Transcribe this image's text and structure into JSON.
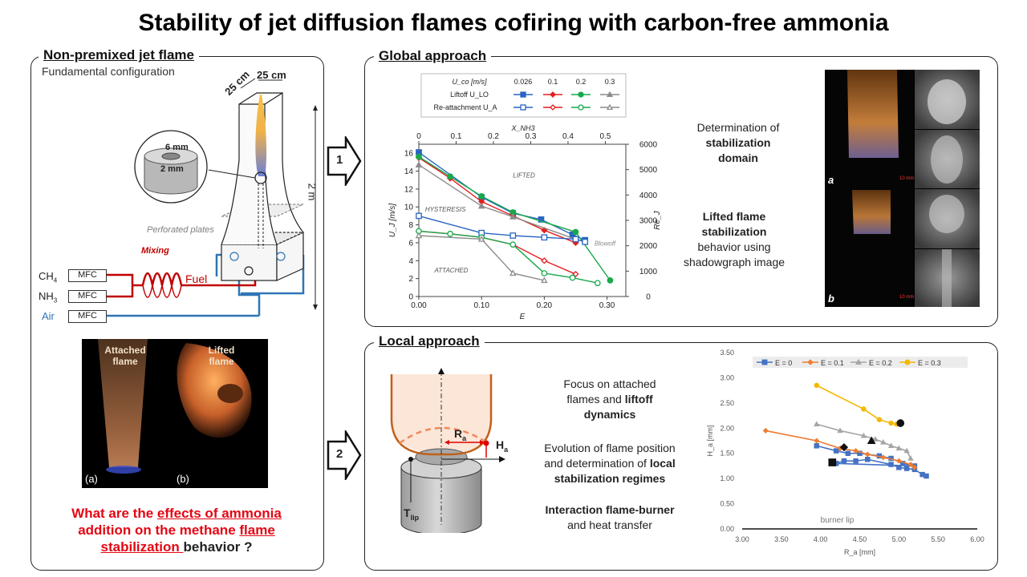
{
  "title": "Stability of jet diffusion flames cofiring with carbon-free ammonia",
  "left_panel": {
    "title": "Non-premixed jet flame",
    "subtitle": "Fundamental configuration",
    "dims": {
      "w1": "25 cm",
      "w2": "25 cm",
      "height": "2 m",
      "outer": "6 mm",
      "inner": "2 mm"
    },
    "labels": {
      "perforated": "Perforated plates",
      "mixing": "Mixing",
      "fuel": "Fuel",
      "ch4": "CH",
      "ch4_sub": "4",
      "nh3": "NH",
      "nh3_sub": "3",
      "air": "Air",
      "mfc": "MFC"
    },
    "photo": {
      "attached": "Attached flame",
      "lifted": "Lifted flame",
      "a": "(a)",
      "b": "(b)"
    },
    "question": {
      "p1": "What are the ",
      "u1": "effects of ammonia",
      "p2": "addition on the methane ",
      "u2": "flame",
      "u3": "stabilization ",
      "p3": "behavior ?"
    }
  },
  "arrows": {
    "a1": "1",
    "a2": "2"
  },
  "global": {
    "title": "Global approach",
    "text1a": "Determination of",
    "text1b": "stabilization",
    "text1c": "domain",
    "text2a": "Lifted flame",
    "text2b": "stabilization",
    "text2c": "behavior using",
    "text2d": "shadowgraph image",
    "photo_labels": {
      "a": "a",
      "b": "b",
      "scale": "10 mm"
    }
  },
  "local": {
    "title": "Local approach",
    "ra": "R",
    "ra_sub": "a",
    "ha": "H",
    "ha_sub": "a",
    "tlip": "T",
    "tlip_sub": "lip",
    "t1a": "Focus on attached",
    "t1b": "flames and ",
    "t1c": "liftoff",
    "t1d": "dynamics",
    "t2a": "Evolution of flame position",
    "t2b": "and determination of ",
    "t2c": "local",
    "t2d": "stabilization regimes",
    "t3a": "Interaction flame-burner",
    "t3b": "and heat transfer"
  },
  "colors": {
    "blue": "#2a64c4",
    "red": "#e31e1e",
    "green": "#18a84a",
    "grey": "#8c8c8c",
    "orange": "#ed7d31",
    "gold": "#f5b800"
  },
  "chart_data": [
    {
      "type": "line",
      "xlabel": "E",
      "ylabel": "U_J [m/s]",
      "y2label": "Re_J",
      "x2label": "X_NH3",
      "xlim": [
        0,
        0.33
      ],
      "ylim": [
        0,
        17
      ],
      "x_ticks": [
        "0.00",
        "0.10",
        "0.20",
        "0.30"
      ],
      "y_ticks": [
        "0",
        "2",
        "4",
        "6",
        "8",
        "10",
        "12",
        "14",
        "16"
      ],
      "y2_ticks": [
        "0",
        "1000",
        "2000",
        "3000",
        "4000",
        "5000",
        "6000"
      ],
      "x2_ticks": [
        "0",
        "0.1",
        "0.2",
        "0.3",
        "0.4",
        "0.5"
      ],
      "region_labels": {
        "lifted": "LIFTED",
        "hysteresis": "HYSTERESIS",
        "attached": "ATTACHED",
        "blowoff": "Blowoff"
      },
      "legend": {
        "header": "U_co [m/s]",
        "cols": [
          "0.026",
          "0.1",
          "0.2",
          "0.3"
        ],
        "row1": "Liftoff U_LO",
        "row2": "Re-attachment U_A"
      },
      "series": [
        {
          "name": "Liftoff U_LO 0.026",
          "color": "#2a64c4",
          "marker": "square",
          "filled": true,
          "points": [
            [
              0,
              16.1
            ],
            [
              0.1,
              11.1
            ],
            [
              0.15,
              9.3
            ],
            [
              0.195,
              8.6
            ],
            [
              0.245,
              6.9
            ],
            [
              0.265,
              6.3
            ]
          ]
        },
        {
          "name": "Liftoff U_LO 0.1",
          "color": "#e31e1e",
          "marker": "diamond",
          "filled": true,
          "points": [
            [
              0,
              15.5
            ],
            [
              0.05,
              13.2
            ],
            [
              0.1,
              10.6
            ],
            [
              0.15,
              9.0
            ],
            [
              0.2,
              7.4
            ],
            [
              0.25,
              6.0
            ]
          ]
        },
        {
          "name": "Liftoff U_LO 0.2",
          "color": "#18a84a",
          "marker": "circle",
          "filled": true,
          "points": [
            [
              0,
              15.6
            ],
            [
              0.05,
              13.4
            ],
            [
              0.1,
              11.2
            ],
            [
              0.15,
              9.4
            ],
            [
              0.25,
              7.2
            ],
            [
              0.305,
              1.8
            ]
          ]
        },
        {
          "name": "Liftoff U_LO 0.3",
          "color": "#8c8c8c",
          "marker": "triangle",
          "filled": true,
          "points": [
            [
              0,
              14.7
            ],
            [
              0.1,
              10.1
            ],
            [
              0.15,
              8.9
            ],
            [
              0.25,
              6.4
            ]
          ]
        },
        {
          "name": "Re-attachment U_A 0.026",
          "color": "#2a64c4",
          "marker": "square",
          "filled": false,
          "points": [
            [
              0,
              9.0
            ],
            [
              0.1,
              7.1
            ],
            [
              0.15,
              6.8
            ],
            [
              0.2,
              6.6
            ],
            [
              0.25,
              6.4
            ],
            [
              0.265,
              6.1
            ]
          ]
        },
        {
          "name": "Re-attachment U_A 0.1",
          "color": "#e31e1e",
          "marker": "diamond",
          "filled": false,
          "points": [
            [
              0,
              7.3
            ],
            [
              0.05,
              7.0
            ],
            [
              0.1,
              6.6
            ],
            [
              0.15,
              5.8
            ],
            [
              0.2,
              4.0
            ],
            [
              0.25,
              2.5
            ]
          ]
        },
        {
          "name": "Re-attachment U_A 0.2",
          "color": "#18a84a",
          "marker": "circle",
          "filled": false,
          "points": [
            [
              0,
              7.3
            ],
            [
              0.05,
              7.0
            ],
            [
              0.1,
              6.6
            ],
            [
              0.15,
              5.8
            ],
            [
              0.2,
              2.6
            ],
            [
              0.245,
              2.1
            ],
            [
              0.285,
              1.5
            ]
          ]
        },
        {
          "name": "Re-attachment U_A 0.3",
          "color": "#8c8c8c",
          "marker": "triangle",
          "filled": false,
          "points": [
            [
              0,
              6.8
            ],
            [
              0.1,
              6.4
            ],
            [
              0.15,
              2.6
            ],
            [
              0.2,
              1.8
            ]
          ]
        }
      ]
    },
    {
      "type": "scatter",
      "xlabel": "R_a [mm]",
      "ylabel": "H_a [mm]",
      "xlim": [
        3.0,
        6.0
      ],
      "ylim": [
        0,
        3.5
      ],
      "x_ticks": [
        "3.00",
        "3.50",
        "4.00",
        "4.50",
        "5.00",
        "5.50",
        "6.00"
      ],
      "y_ticks": [
        "0.00",
        "0.50",
        "1.00",
        "1.50",
        "2.00",
        "2.50",
        "3.00",
        "3.50"
      ],
      "annotation": "burner lip",
      "legend": [
        "E = 0",
        "E = 0.1",
        "E = 0.2",
        "E = 0.3"
      ],
      "series": [
        {
          "name": "E = 0",
          "color": "#4472c4",
          "marker": "square",
          "points": [
            [
              3.95,
              1.65
            ],
            [
              4.2,
              1.55
            ],
            [
              4.35,
              1.5
            ],
            [
              4.5,
              1.5
            ],
            [
              4.75,
              1.45
            ],
            [
              4.9,
              1.4
            ],
            [
              5.05,
              1.3
            ],
            [
              5.2,
              1.25
            ],
            [
              4.2,
              1.3
            ],
            [
              4.3,
              1.35
            ],
            [
              4.45,
              1.35
            ],
            [
              4.6,
              1.38
            ],
            [
              4.9,
              1.28
            ],
            [
              5.0,
              1.22
            ],
            [
              5.1,
              1.2
            ],
            [
              5.2,
              1.18
            ],
            [
              5.3,
              1.08
            ],
            [
              5.35,
              1.05
            ]
          ],
          "marker_end": [
            4.15,
            1.32
          ]
        },
        {
          "name": "E = 0.1",
          "color": "#ed7d31",
          "marker": "diamond",
          "points": [
            [
              3.3,
              1.95
            ],
            [
              3.95,
              1.75
            ],
            [
              4.25,
              1.6
            ],
            [
              4.45,
              1.55
            ],
            [
              4.6,
              1.48
            ],
            [
              4.8,
              1.42
            ],
            [
              5.0,
              1.35
            ],
            [
              5.15,
              1.28
            ],
            [
              5.2,
              1.22
            ]
          ],
          "marker_end": [
            4.3,
            1.62
          ]
        },
        {
          "name": "E = 0.2",
          "color": "#a5a5a5",
          "marker": "triangle",
          "points": [
            [
              3.95,
              2.08
            ],
            [
              4.25,
              1.95
            ],
            [
              4.55,
              1.85
            ],
            [
              4.7,
              1.78
            ],
            [
              4.8,
              1.72
            ],
            [
              4.9,
              1.65
            ],
            [
              5.0,
              1.6
            ],
            [
              5.1,
              1.55
            ],
            [
              5.15,
              1.4
            ]
          ],
          "marker_end": [
            4.65,
            1.75
          ]
        },
        {
          "name": "E = 0.3",
          "color": "#f5b800",
          "marker": "circle",
          "points": [
            [
              3.95,
              2.85
            ],
            [
              4.55,
              2.38
            ],
            [
              4.75,
              2.17
            ],
            [
              4.9,
              2.1
            ],
            [
              4.97,
              2.08
            ]
          ],
          "marker_end": [
            5.02,
            2.1
          ]
        }
      ]
    }
  ]
}
